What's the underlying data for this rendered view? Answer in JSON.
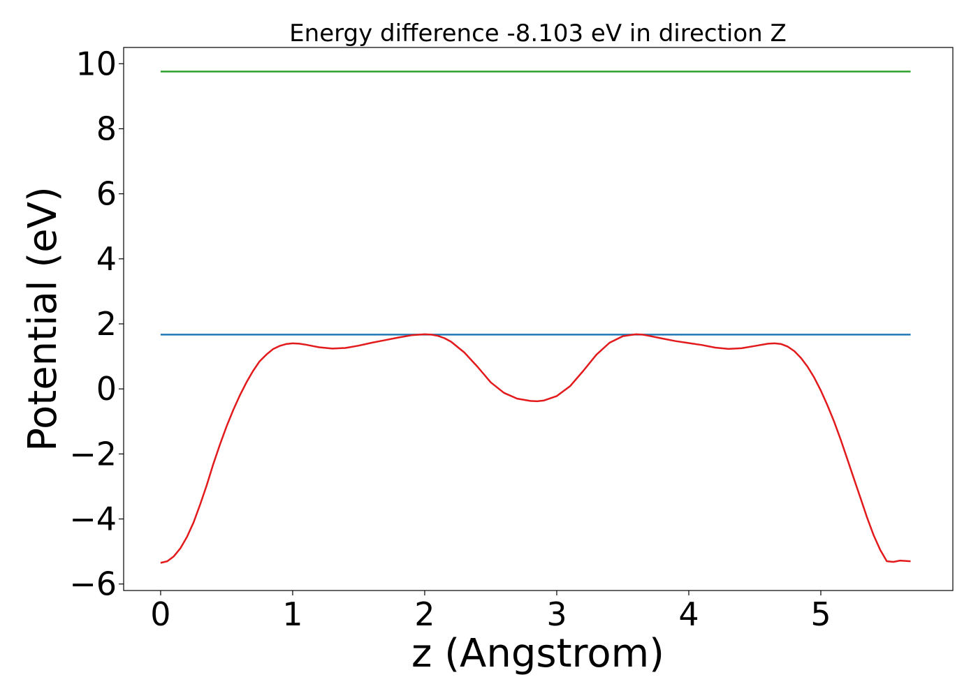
{
  "chart_data": {
    "type": "line",
    "title": "Energy difference -8.103 eV in direction Z",
    "xlabel": "z (Angstrom)",
    "ylabel": "Potential (eV)",
    "xlim": [
      -0.28,
      6.0
    ],
    "ylim": [
      -6.2,
      10.5
    ],
    "xticks": [
      0,
      1,
      2,
      3,
      4,
      5
    ],
    "xtick_labels": [
      "0",
      "1",
      "2",
      "3",
      "4",
      "5"
    ],
    "yticks": [
      -6,
      -4,
      -2,
      0,
      2,
      4,
      6,
      8,
      10
    ],
    "ytick_labels": [
      "−6",
      "−4",
      "−2",
      "0",
      "2",
      "4",
      "6",
      "8",
      "10"
    ],
    "grid": false,
    "series": [
      {
        "color": "#2ca02c",
        "x": [
          0.0,
          5.68
        ],
        "y": [
          9.76,
          9.76
        ]
      },
      {
        "color": "#1f77b4",
        "x": [
          0.0,
          5.68
        ],
        "y": [
          1.67,
          1.67
        ]
      },
      {
        "color": "#e31a1c",
        "x": [
          0.0,
          0.05,
          0.1,
          0.15,
          0.2,
          0.25,
          0.3,
          0.35,
          0.4,
          0.45,
          0.5,
          0.55,
          0.6,
          0.65,
          0.7,
          0.75,
          0.8,
          0.85,
          0.9,
          0.95,
          1.0,
          1.05,
          1.1,
          1.15,
          1.2,
          1.3,
          1.4,
          1.5,
          1.6,
          1.7,
          1.8,
          1.9,
          2.0,
          2.05,
          2.1,
          2.15,
          2.2,
          2.3,
          2.4,
          2.5,
          2.6,
          2.7,
          2.8,
          2.85,
          2.9,
          3.0,
          3.1,
          3.2,
          3.3,
          3.4,
          3.5,
          3.6,
          3.65,
          3.7,
          3.8,
          3.9,
          4.0,
          4.1,
          4.2,
          4.3,
          4.4,
          4.5,
          4.6,
          4.65,
          4.7,
          4.75,
          4.8,
          4.85,
          4.9,
          4.95,
          5.0,
          5.05,
          5.1,
          5.15,
          5.2,
          5.25,
          5.3,
          5.35,
          5.4,
          5.45,
          5.5,
          5.55,
          5.6,
          5.68
        ],
        "y": [
          -5.35,
          -5.3,
          -5.15,
          -4.9,
          -4.55,
          -4.1,
          -3.55,
          -2.95,
          -2.3,
          -1.7,
          -1.15,
          -0.65,
          -0.2,
          0.2,
          0.55,
          0.85,
          1.05,
          1.22,
          1.32,
          1.38,
          1.4,
          1.39,
          1.36,
          1.32,
          1.28,
          1.24,
          1.26,
          1.33,
          1.42,
          1.5,
          1.58,
          1.65,
          1.68,
          1.67,
          1.63,
          1.56,
          1.45,
          1.12,
          0.68,
          0.2,
          -0.12,
          -0.3,
          -0.37,
          -0.38,
          -0.36,
          -0.22,
          0.08,
          0.55,
          1.05,
          1.42,
          1.62,
          1.68,
          1.67,
          1.63,
          1.55,
          1.47,
          1.41,
          1.35,
          1.27,
          1.23,
          1.25,
          1.32,
          1.39,
          1.4,
          1.38,
          1.3,
          1.16,
          0.95,
          0.68,
          0.35,
          -0.05,
          -0.5,
          -1.0,
          -1.55,
          -2.15,
          -2.75,
          -3.35,
          -3.95,
          -4.5,
          -4.95,
          -5.3,
          -5.32,
          -5.28,
          -5.3
        ]
      }
    ]
  }
}
